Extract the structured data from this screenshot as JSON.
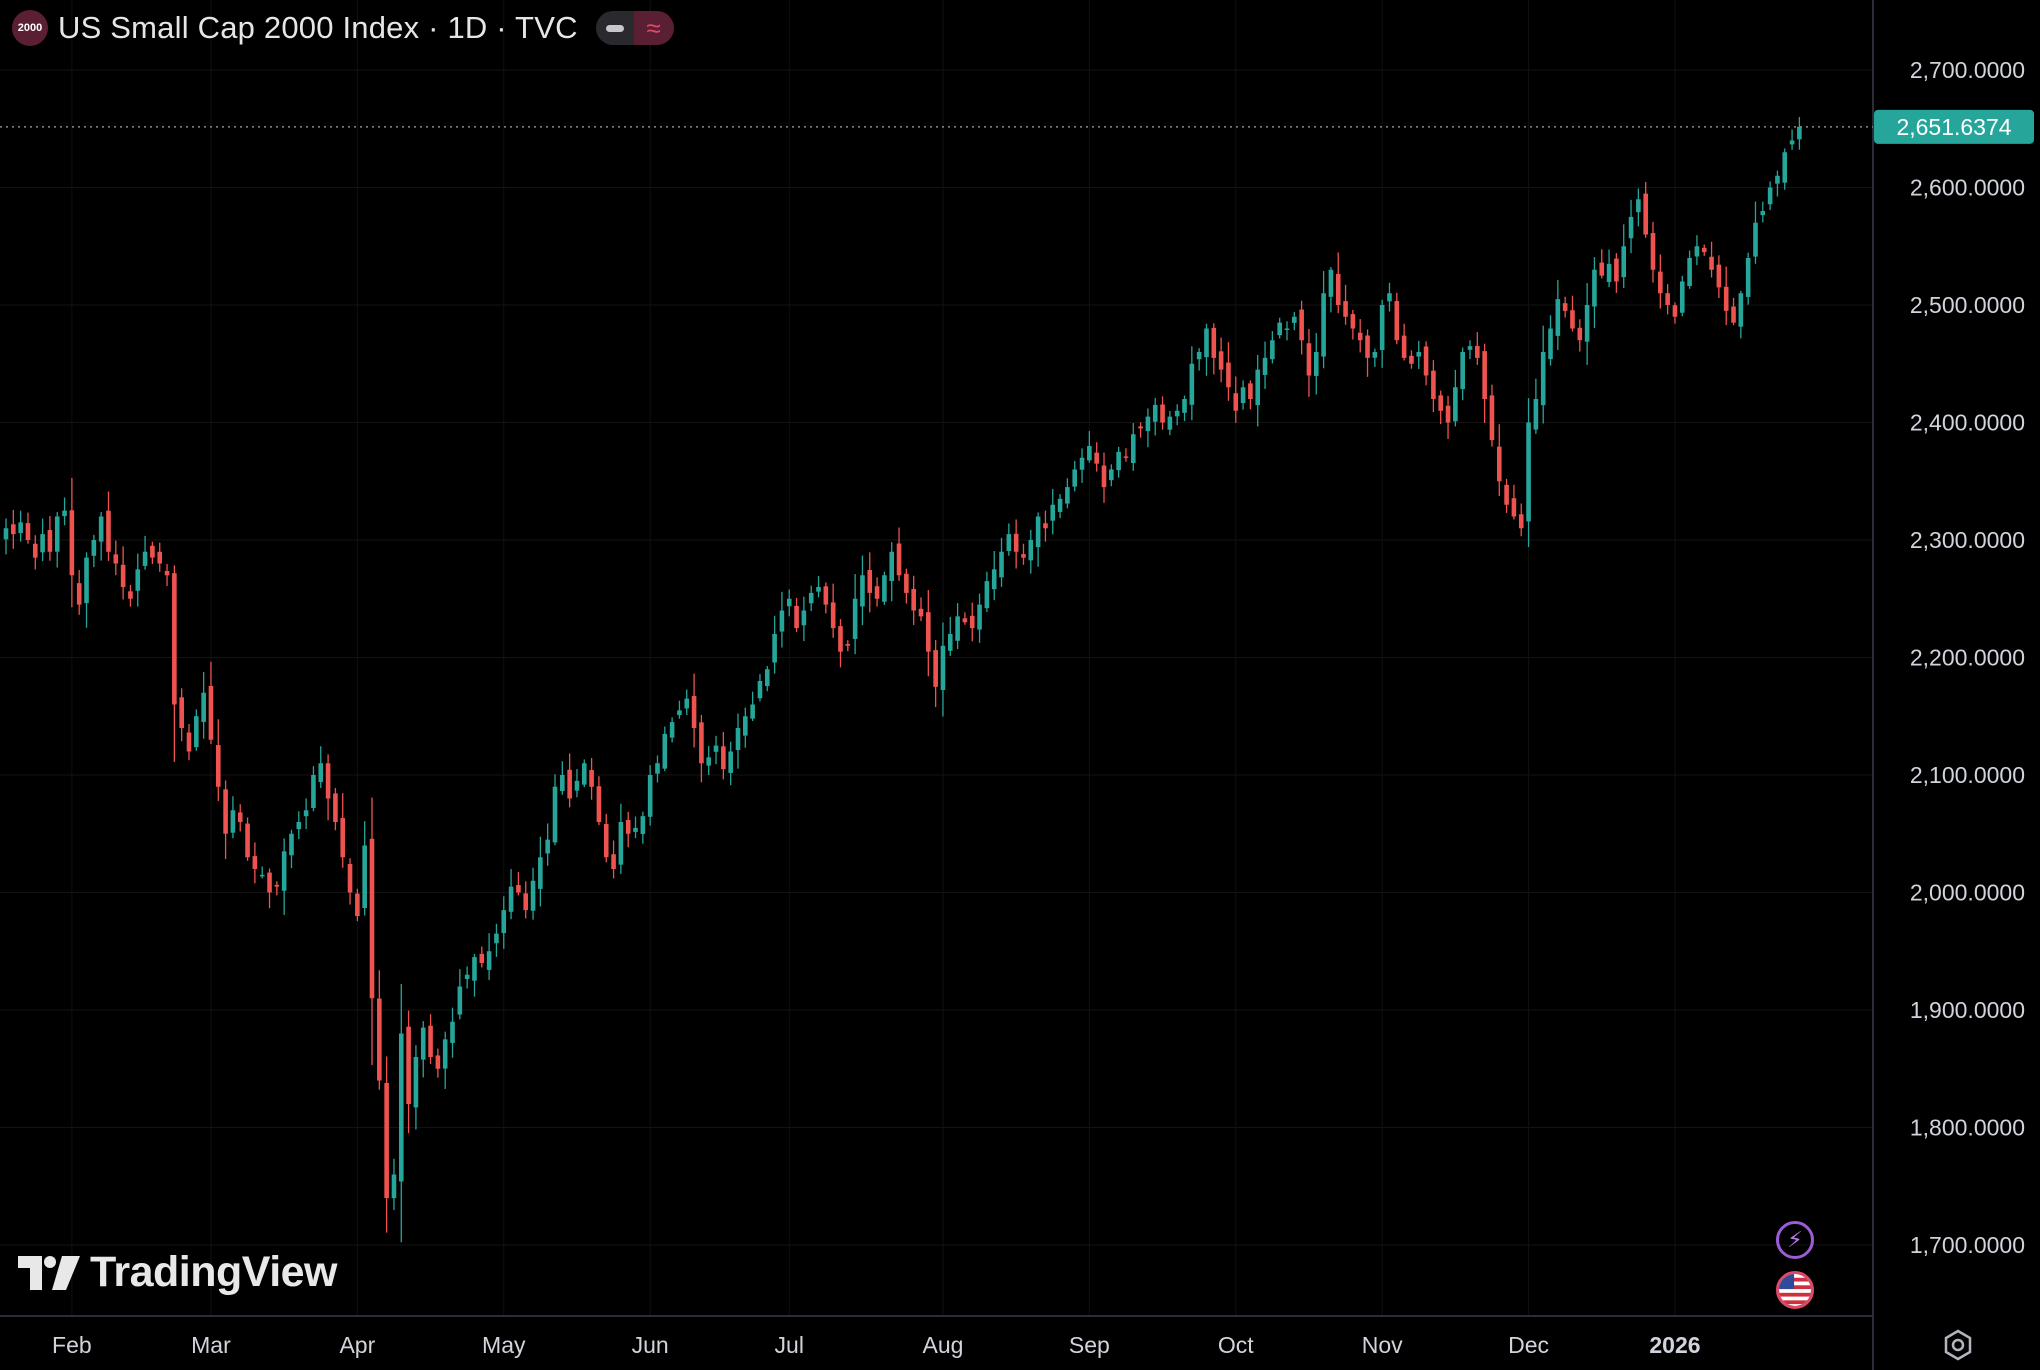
{
  "header": {
    "badge": "2000",
    "title": "US Small Cap 2000 Index · 1D · TVC"
  },
  "brand": {
    "logo_text": "TradingView"
  },
  "icons": {
    "symbol": "index-badge-icon",
    "visibility": "eye-toggle-icon",
    "indicator": "wave-icon",
    "lightning": "lightning-icon",
    "flag": "us-flag-icon",
    "settings": "gear-icon",
    "logo": "tradingview-logo-icon"
  },
  "colors": {
    "background": "#000000",
    "up": "#26a69a",
    "down": "#ef5350",
    "axis_text": "#d1d4dc",
    "price_label_bg": "#26a69a",
    "divider": "#2a2e39"
  },
  "price_label": "2,651.6374",
  "chart_data": {
    "type": "candlestick",
    "title": "US Small Cap 2000 Index · 1D · TVC",
    "y_ticks": [
      "2,700.0000",
      "2,600.0000",
      "2,500.0000",
      "2,400.0000",
      "2,300.0000",
      "2,200.0000",
      "2,100.0000",
      "2,000.0000",
      "1,900.0000",
      "1,800.0000",
      "1,700.0000"
    ],
    "y_tick_values": [
      2700,
      2600,
      2500,
      2400,
      2300,
      2200,
      2100,
      2000,
      1900,
      1800,
      1700
    ],
    "x_ticks": [
      "Feb",
      "Mar",
      "Apr",
      "May",
      "Jun",
      "Jul",
      "Aug",
      "Sep",
      "Oct",
      "Nov",
      "Dec",
      "2026"
    ],
    "x_tick_bars": [
      9,
      28,
      48,
      68,
      88,
      107,
      128,
      148,
      168,
      188,
      208,
      228
    ],
    "ylim": [
      1630,
      2750
    ],
    "last_price": 2651.6374,
    "grid": true,
    "closes": [
      2310,
      2305,
      2315,
      2300,
      2285,
      2305,
      2290,
      2320,
      2325,
      2270,
      2245,
      2285,
      2300,
      2320,
      2290,
      2280,
      2260,
      2250,
      2275,
      2290,
      2285,
      2280,
      2270,
      2160,
      2140,
      2120,
      2150,
      2170,
      2130,
      2090,
      2050,
      2070,
      2060,
      2030,
      2020,
      2015,
      2000,
      2005,
      2035,
      2050,
      2060,
      2070,
      2100,
      2110,
      2080,
      2060,
      2030,
      2000,
      1980,
      2040,
      1910,
      1840,
      1740,
      1760,
      1880,
      1820,
      1860,
      1885,
      1860,
      1850,
      1875,
      1890,
      1920,
      1930,
      1945,
      1940,
      1950,
      1965,
      1985,
      2005,
      2000,
      1985,
      2010,
      2030,
      2045,
      2090,
      2100,
      2080,
      2095,
      2110,
      2090,
      2060,
      2030,
      2020,
      2060,
      2050,
      2055,
      2065,
      2100,
      2110,
      2135,
      2145,
      2155,
      2165,
      2140,
      2110,
      2115,
      2125,
      2105,
      2120,
      2140,
      2150,
      2160,
      2180,
      2190,
      2220,
      2240,
      2250,
      2225,
      2240,
      2255,
      2260,
      2245,
      2225,
      2205,
      2210,
      2250,
      2270,
      2255,
      2250,
      2270,
      2290,
      2270,
      2255,
      2240,
      2235,
      2205,
      2175,
      2210,
      2220,
      2235,
      2230,
      2225,
      2245,
      2265,
      2275,
      2290,
      2305,
      2290,
      2285,
      2300,
      2320,
      2310,
      2330,
      2335,
      2345,
      2360,
      2370,
      2380,
      2365,
      2345,
      2360,
      2375,
      2370,
      2390,
      2395,
      2405,
      2415,
      2400,
      2405,
      2410,
      2420,
      2450,
      2460,
      2480,
      2455,
      2445,
      2430,
      2410,
      2430,
      2420,
      2445,
      2455,
      2470,
      2485,
      2480,
      2490,
      2470,
      2440,
      2460,
      2510,
      2530,
      2500,
      2490,
      2480,
      2470,
      2455,
      2460,
      2500,
      2510,
      2470,
      2455,
      2450,
      2460,
      2440,
      2420,
      2410,
      2400,
      2430,
      2460,
      2465,
      2455,
      2420,
      2385,
      2350,
      2330,
      2320,
      2310,
      2400,
      2420,
      2460,
      2480,
      2505,
      2495,
      2480,
      2470,
      2500,
      2530,
      2525,
      2535,
      2520,
      2550,
      2575,
      2590,
      2560,
      2530,
      2510,
      2500,
      2490,
      2520,
      2540,
      2550,
      2545,
      2530,
      2515,
      2495,
      2485,
      2510,
      2540,
      2570,
      2580,
      2600,
      2610,
      2630,
      2640,
      2651.64
    ],
    "series": [
      {
        "name": "US Small Cap 2000 Index",
        "values_ref": "closes"
      }
    ]
  }
}
